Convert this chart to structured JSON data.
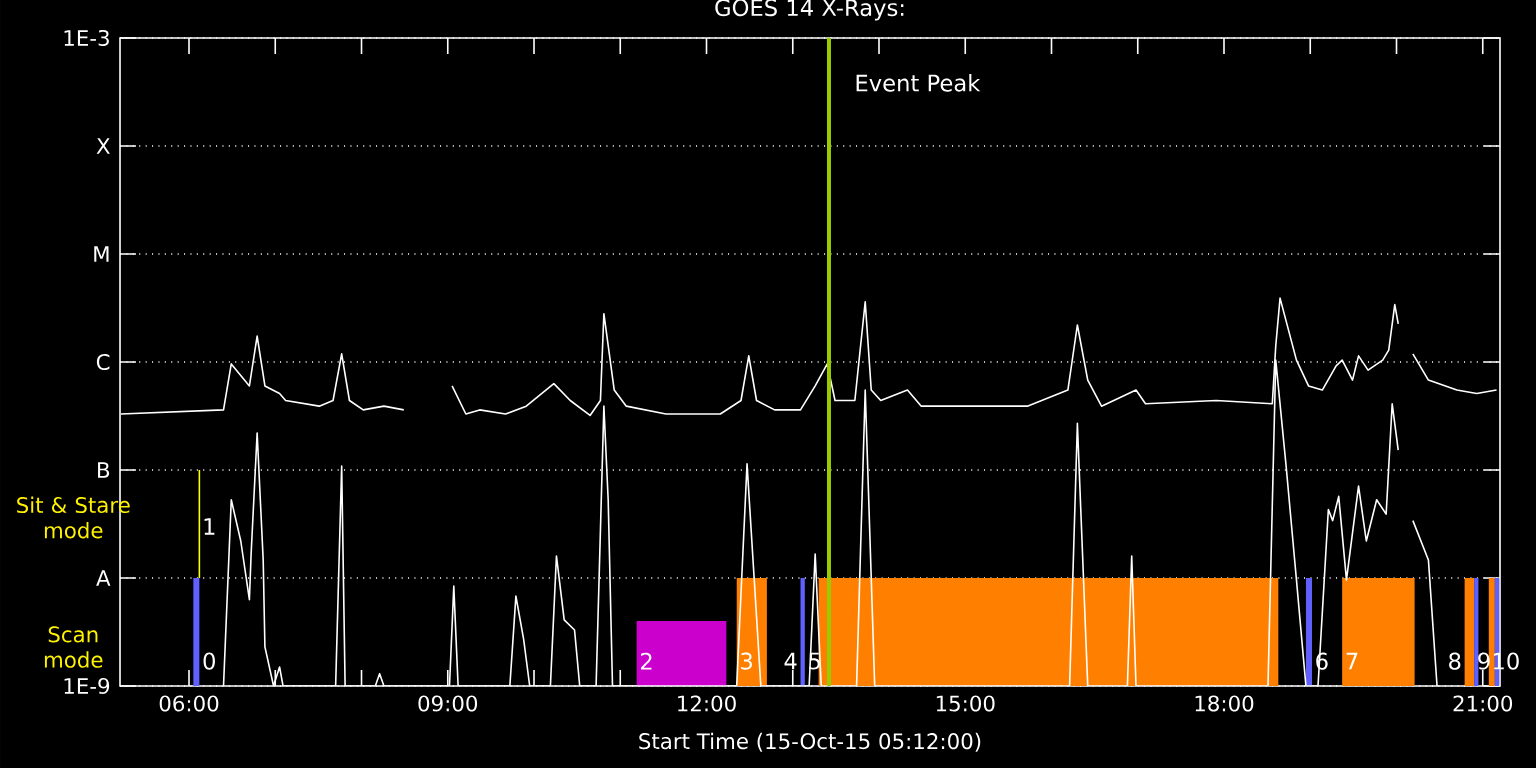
{
  "chart_data": {
    "type": "line",
    "title": "GOES 14 X-Rays:",
    "xlabel": "Start Time (15-Oct-15 05:12:00)",
    "xlim": [
      5.2,
      21.2
    ],
    "xticks": [
      {
        "value": 6,
        "label": "06:00"
      },
      {
        "value": 7,
        "label": null
      },
      {
        "value": 8,
        "label": null
      },
      {
        "value": 9,
        "label": "09:00"
      },
      {
        "value": 10,
        "label": null
      },
      {
        "value": 11,
        "label": null
      },
      {
        "value": 12,
        "label": "12:00"
      },
      {
        "value": 13,
        "label": null
      },
      {
        "value": 14,
        "label": null
      },
      {
        "value": 15,
        "label": "15:00"
      },
      {
        "value": 16,
        "label": null
      },
      {
        "value": 17,
        "label": null
      },
      {
        "value": 18,
        "label": "18:00"
      },
      {
        "value": 19,
        "label": null
      },
      {
        "value": 20,
        "label": null
      },
      {
        "value": 21,
        "label": "21:00"
      }
    ],
    "ylim": [
      1e-09,
      0.001
    ],
    "yticks": [
      {
        "value": 1e-09,
        "label": "1E-9"
      },
      {
        "value": 1e-08,
        "label": "A"
      },
      {
        "value": 1e-07,
        "label": "B"
      },
      {
        "value": 1e-06,
        "label": "C"
      },
      {
        "value": 1e-05,
        "label": "M"
      },
      {
        "value": 0.0001,
        "label": "X"
      },
      {
        "value": 0.001,
        "label": "1E-3"
      }
    ],
    "log": true,
    "grid": "y",
    "series": [
      {
        "type": "area",
        "color": "#cc00cc",
        "x": [
          11.19,
          12.23
        ],
        "values": [
          4e-09,
          1e-09
        ]
      },
      {
        "type": "area",
        "color": "#ff8000",
        "x": [
          12.35,
          12.7,
          13.3,
          18.63,
          19.37,
          20.21,
          20.79,
          20.9,
          21.07,
          21.14
        ],
        "values": [
          1e-08,
          1e-09,
          1e-08,
          1e-09,
          1e-08,
          1e-09,
          1e-08,
          1e-09,
          1e-08,
          1e-09
        ]
      },
      {
        "type": "area",
        "color": "#6060ff",
        "x": [
          6.05,
          6.12,
          13.09,
          13.14,
          18.95,
          19.02,
          20.9,
          20.95,
          21.14,
          21.19
        ],
        "values": [
          1e-08,
          1e-09,
          1e-08,
          1e-09,
          1e-08,
          1e-09,
          1e-08,
          1e-09,
          1e-08,
          1e-09
        ]
      },
      {
        "type": "line",
        "color": "#ffff00",
        "x": [
          6.12,
          6.12
        ],
        "values": [
          1e-08,
          1e-07
        ]
      },
      {
        "type": "line",
        "color": "#ffffff",
        "x": [
          5.21,
          6.4,
          6.49,
          6.7,
          6.79,
          6.88,
          7.05,
          7.12,
          7.51,
          7.67,
          7.77,
          7.86,
          8.02,
          8.26,
          8.49,
          8.77,
          9.05,
          9.21,
          9.37,
          9.67,
          9.91,
          10.23,
          10.42,
          10.65,
          10.77,
          10.81,
          10.93,
          11.07,
          11.53,
          12.16,
          12.4,
          12.49,
          12.58,
          12.79,
          13.09,
          13.26,
          13.4,
          13.49,
          13.72,
          13.84,
          13.91,
          14.02,
          14.33,
          14.49,
          15.72,
          16.19,
          16.3,
          16.42,
          16.58,
          16.98,
          17.09,
          17.91,
          18.56,
          18.6,
          18.65,
          18.84,
          18.98,
          19.14,
          19.3,
          19.37,
          19.49,
          19.56,
          19.67,
          19.84,
          19.91,
          19.98,
          20.02,
          20.1,
          20.19,
          20.37,
          20.7,
          20.93,
          21.16
        ],
        "values": [
          3.3e-07,
          3.6e-07,
          9.6e-07,
          6e-07,
          1.74e-06,
          6e-07,
          5.1e-07,
          4.4e-07,
          3.9e-07,
          4.4e-07,
          1.19e-06,
          4.4e-07,
          3.6e-07,
          3.9e-07,
          3.6e-07,
          null,
          6e-07,
          3.3e-07,
          3.6e-07,
          3.3e-07,
          3.9e-07,
          6.3e-07,
          4.4e-07,
          3.2e-07,
          4.4e-07,
          2.8e-06,
          5.5e-07,
          3.9e-07,
          3.3e-07,
          3.3e-07,
          4.4e-07,
          1.14e-06,
          4.4e-07,
          3.6e-07,
          3.6e-07,
          6e-07,
          9.6e-07,
          4.4e-07,
          4.4e-07,
          3.6e-06,
          5.5e-07,
          4.4e-07,
          5.5e-07,
          3.9e-07,
          3.9e-07,
          5.5e-07,
          2.2e-06,
          6.8e-07,
          3.9e-07,
          5.5e-07,
          4.1e-07,
          4.4e-07,
          4.1e-07,
          1.41e-06,
          3.9e-06,
          1.04e-06,
          6e-07,
          5.5e-07,
          9.2e-07,
          1.04e-06,
          6.8e-07,
          1.14e-06,
          8.4e-07,
          1.04e-06,
          1.29e-06,
          3.4e-06,
          2.25e-06,
          null,
          1.19e-06,
          6.8e-07,
          5.5e-07,
          5.1e-07,
          5.5e-07
        ]
      },
      {
        "type": "line",
        "color": "#ffffff",
        "x": [
          6.4,
          6.49,
          6.6,
          6.7,
          6.72,
          6.79,
          6.86,
          6.88,
          6.98,
          7.05,
          7.09,
          7.7,
          7.77,
          7.81,
          8.16,
          8.21,
          8.26,
          9.02,
          9.07,
          9.12,
          9.72,
          9.79,
          9.88,
          9.95,
          10.19,
          10.26,
          10.35,
          10.47,
          10.53,
          10.72,
          10.81,
          10.86,
          10.91,
          12.35,
          12.47,
          12.63,
          13.19,
          13.26,
          13.33,
          13.74,
          13.84,
          13.95,
          16.21,
          16.3,
          16.42,
          16.88,
          16.93,
          16.98,
          18.51,
          18.6,
          18.72,
          18.84,
          18.95,
          19.09,
          19.21,
          19.26,
          19.33,
          19.42,
          19.56,
          19.65,
          19.77,
          19.88,
          19.95,
          20.02,
          20.1,
          20.19,
          20.37,
          20.47
        ],
        "values": [
          1e-09,
          5.3e-08,
          2.2e-08,
          6.3e-09,
          1.67e-08,
          2.2e-07,
          1.47e-08,
          2.3e-09,
          1e-09,
          1.5e-09,
          1e-09,
          1e-09,
          1.09e-07,
          1e-09,
          1e-09,
          1.3e-09,
          1e-09,
          1e-09,
          8.4e-09,
          1e-09,
          1e-09,
          6.8e-09,
          2.7e-09,
          1e-09,
          1e-09,
          1.6e-08,
          4.1e-09,
          3.3e-09,
          1e-09,
          1e-09,
          3.9e-07,
          5.3e-08,
          1e-09,
          1e-09,
          1.14e-07,
          1e-09,
          1e-09,
          1.67e-08,
          1e-09,
          1e-09,
          5.5e-07,
          1e-09,
          1e-09,
          2.7e-07,
          1e-09,
          1e-09,
          1.6e-08,
          1e-09,
          1e-09,
          1.04e-06,
          1.09e-07,
          9.6e-09,
          1e-09,
          1e-09,
          4.3e-08,
          3.4e-08,
          5.7e-08,
          9.6e-09,
          7.1e-08,
          2.2e-08,
          5.3e-08,
          3.9e-08,
          4.1e-07,
          1.53e-07,
          null,
          3.4e-08,
          1.47e-08,
          1e-09
        ]
      }
    ],
    "ref_lines": [
      {
        "axis": "x",
        "value": 13.42,
        "label": "Event Peak",
        "color": "#99cc00"
      }
    ],
    "annotations": [
      "Sit & Stare mode",
      "Scan mode",
      {
        "text": "0",
        "x": 6.12,
        "y": 1.7e-09
      },
      {
        "text": "1",
        "x": 6.12,
        "y": 3e-08
      },
      {
        "text": "2",
        "x": 11.19,
        "y": 1.7e-09
      },
      {
        "text": "3",
        "x": 12.35,
        "y": 1.7e-09
      },
      {
        "text": "4",
        "x": 13.09,
        "y": 1.7e-09
      },
      {
        "text": "5",
        "x": 13.14,
        "y": 1.7e-09
      },
      {
        "text": "6",
        "x": 19.02,
        "y": 1.7e-09
      },
      {
        "text": "7",
        "x": 19.37,
        "y": 1.7e-09
      },
      {
        "text": "8",
        "x": 20.79,
        "y": 1.7e-09
      },
      {
        "text": "9",
        "x": 20.9,
        "y": 1.7e-09
      },
      {
        "text": "10",
        "x": 21.07,
        "y": 1.7e-09
      }
    ]
  }
}
